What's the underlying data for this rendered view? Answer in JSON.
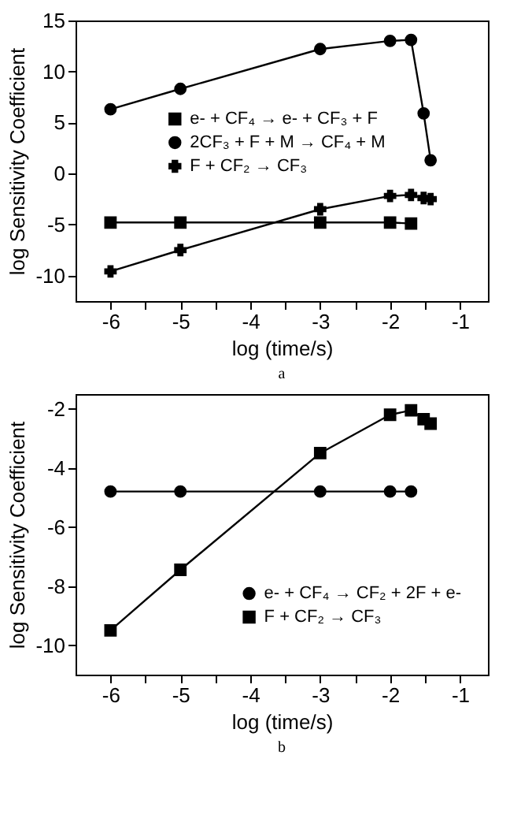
{
  "chart_data": [
    {
      "type": "line",
      "xlabel": "log (time/s)",
      "ylabel": "log Sensitivity Coefficient",
      "annotations": [
        "a"
      ],
      "xlim": [
        -6.5,
        -0.6
      ],
      "ylim": [
        -12.5,
        15
      ],
      "xticks": [
        -6,
        {
          "value": -5.5,
          "label": null
        },
        -5,
        {
          "value": -4.5,
          "label": null
        },
        -4,
        {
          "value": -3.5,
          "label": null
        },
        -3,
        {
          "value": -2.5,
          "label": null
        },
        -2,
        {
          "value": -1.5,
          "label": null
        },
        -1
      ],
      "yticks": [
        -10,
        -5,
        0,
        5,
        10,
        15
      ],
      "grid": false,
      "legend": "left",
      "series": [
        {
          "name": "e- + CF₄ → e- + CF₃ + F",
          "color": "#000000",
          "marker": "square",
          "x": [
            -6,
            -5,
            -3,
            -2,
            -1.7
          ],
          "values": [
            -4.8,
            -4.8,
            -4.8,
            -4.8,
            -4.9
          ]
        },
        {
          "name": "2CF₃ + F + M → CF₄ + M",
          "color": "#000000",
          "marker": "circle",
          "x": [
            -6,
            -5,
            -3,
            -2,
            -1.7,
            -1.52,
            -1.42
          ],
          "values": [
            6.3,
            8.3,
            12.2,
            13.0,
            13.1,
            5.9,
            1.3
          ]
        },
        {
          "name": "F + CF₂ → CF₃",
          "color": "#000000",
          "marker": "cross",
          "x": [
            -6,
            -5,
            -3,
            -2,
            -1.7,
            -1.52,
            -1.42
          ],
          "values": [
            -9.6,
            -7.5,
            -3.5,
            -2.2,
            -2.1,
            -2.4,
            -2.5
          ]
        }
      ]
    },
    {
      "type": "line",
      "xlabel": "log (time/s)",
      "ylabel": "log Sensitivity Coefficient",
      "annotations": [
        "b"
      ],
      "xlim": [
        -6.5,
        -0.6
      ],
      "ylim": [
        -11,
        -1.5
      ],
      "xticks": [
        -6,
        {
          "value": -5.5,
          "label": null
        },
        -5,
        {
          "value": -4.5,
          "label": null
        },
        -4,
        {
          "value": -3.5,
          "label": null
        },
        -3,
        {
          "value": -2.5,
          "label": null
        },
        -2,
        {
          "value": -1.5,
          "label": null
        },
        -1
      ],
      "yticks": [
        -10,
        -8,
        -6,
        -4,
        -2
      ],
      "grid": false,
      "legend": "bottom right",
      "series": [
        {
          "name": "e- + CF₄ → CF₂ + 2F + e-",
          "color": "#000000",
          "marker": "circle",
          "x": [
            -6,
            -5,
            -3,
            -2,
            -1.7
          ],
          "values": [
            -4.8,
            -4.8,
            -4.8,
            -4.8,
            -4.8
          ]
        },
        {
          "name": "F + CF₂ → CF₃",
          "color": "#000000",
          "marker": "square",
          "x": [
            -6,
            -5,
            -3,
            -2,
            -1.7,
            -1.52,
            -1.42
          ],
          "values": [
            -9.5,
            -7.45,
            -3.5,
            -2.2,
            -2.05,
            -2.35,
            -2.5
          ]
        }
      ]
    }
  ]
}
